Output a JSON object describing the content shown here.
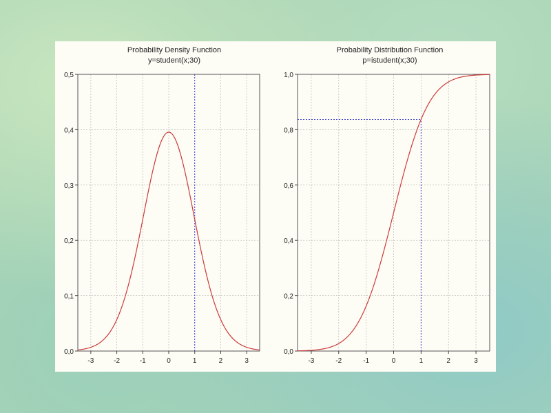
{
  "chart_data": [
    {
      "type": "line",
      "title": "Probability Density Function",
      "subtitle": "y=student(x;30)",
      "function": "student_pdf",
      "df": 30,
      "xlim": [
        -3.5,
        3.5
      ],
      "ylim": [
        0,
        0.5
      ],
      "xticks": [
        -3,
        -2,
        -1,
        0,
        1,
        2,
        3
      ],
      "xtick_labels": [
        "-3",
        "-2",
        "-1",
        "0",
        "1",
        "2",
        "3"
      ],
      "yticks": [
        0,
        0.1,
        0.2,
        0.3,
        0.4,
        0.5
      ],
      "ytick_labels": [
        "0,0",
        "0,1",
        "0,2",
        "0,3",
        "0,4",
        "0,5"
      ],
      "grid": true,
      "line_color": "#cc3a3a",
      "marker_color": "#3a3ad0",
      "reference_lines": [
        {
          "orientation": "vertical",
          "x": 1
        }
      ]
    },
    {
      "type": "line",
      "title": "Probability Distribution Function",
      "subtitle": "p=istudent(x;30)",
      "function": "student_cdf",
      "df": 30,
      "xlim": [
        -3.5,
        3.5
      ],
      "ylim": [
        0,
        1
      ],
      "xticks": [
        -3,
        -2,
        -1,
        0,
        1,
        2,
        3
      ],
      "xtick_labels": [
        "-3",
        "-2",
        "-1",
        "0",
        "1",
        "2",
        "3"
      ],
      "yticks": [
        0,
        0.2,
        0.4,
        0.6,
        0.8,
        1
      ],
      "ytick_labels": [
        "0,0",
        "0,2",
        "0,4",
        "0,6",
        "0,8",
        "1,0"
      ],
      "grid": true,
      "line_color": "#cc3a3a",
      "marker_color": "#3a3ad0",
      "reference_lines": [
        {
          "orientation": "vertical",
          "x": 1,
          "y": 0.837
        },
        {
          "orientation": "horizontal",
          "x": 1,
          "y": 0.837
        }
      ]
    }
  ]
}
